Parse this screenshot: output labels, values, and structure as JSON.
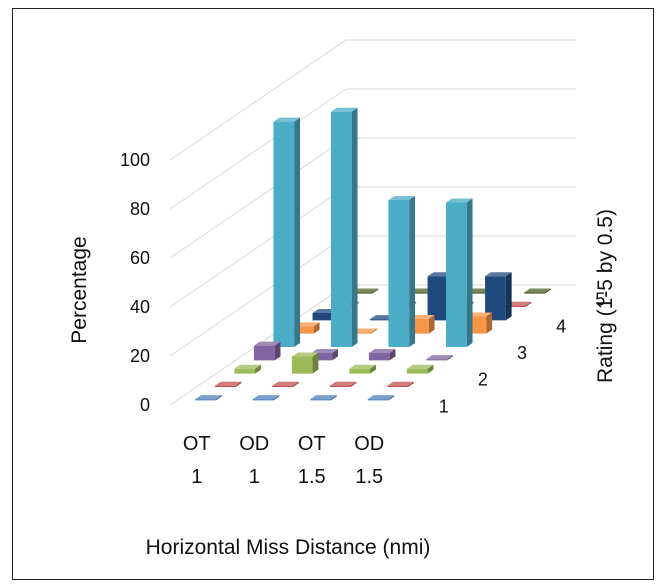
{
  "chart_data": {
    "type": "bar",
    "subtype": "3d-column",
    "xlabel": "Horizontal Miss Distance (nmi)",
    "ylabel": "Percentage",
    "zlabel": "Rating (1-5 by 0.5)",
    "categories": [
      {
        "line1": "OT",
        "line2": "1"
      },
      {
        "line1": "OD",
        "line2": "1"
      },
      {
        "line1": "OT",
        "line2": "1.5"
      },
      {
        "line1": "OD",
        "line2": "1.5"
      }
    ],
    "ylim": [
      0,
      100
    ],
    "yticks": [
      "0",
      "20",
      "40",
      "60",
      "80",
      "100"
    ],
    "ztick_labels": [
      "1",
      "2",
      "3",
      "4",
      "5"
    ],
    "grid": true,
    "series": [
      {
        "rating": 1,
        "color": "#4f81bd",
        "values": [
          0,
          0,
          0,
          0
        ]
      },
      {
        "rating": 1.5,
        "color": "#c0504d",
        "values": [
          0,
          0,
          0,
          0
        ]
      },
      {
        "rating": 2,
        "color": "#9bbb59",
        "values": [
          2,
          7,
          2,
          2
        ]
      },
      {
        "rating": 2.5,
        "color": "#8064a2",
        "values": [
          6,
          3,
          3,
          0
        ]
      },
      {
        "rating": 3,
        "color": "#4bacc6",
        "values": [
          92,
          96,
          60,
          59
        ]
      },
      {
        "rating": 3.5,
        "color": "#f79646",
        "values": [
          3,
          0,
          6,
          7
        ]
      },
      {
        "rating": 4,
        "color": "#1f497d",
        "values": [
          3,
          0,
          18,
          18
        ]
      },
      {
        "rating": 4.5,
        "color": "#c0504d",
        "values": [
          0,
          0,
          0,
          0
        ]
      },
      {
        "rating": 5,
        "color": "#4f6228",
        "values": [
          0,
          0,
          0,
          0
        ]
      }
    ]
  }
}
